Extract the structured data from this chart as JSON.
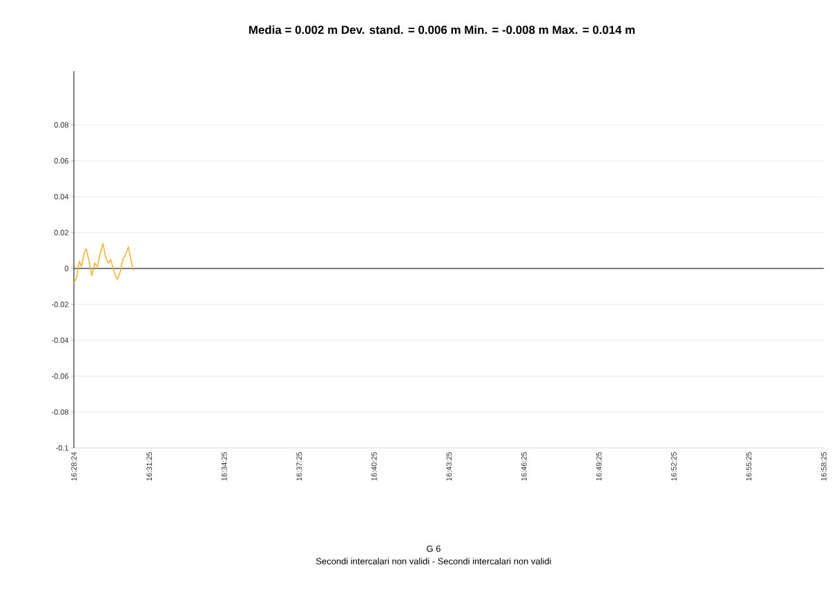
{
  "chart_data": {
    "type": "line",
    "title": "Media = 0.002 m  Dev. stand. = 0.006 m  Min. = -0.008 m  Max. = 0.014 m",
    "annotations": [
      "G 6",
      "Secondi intercalari non validi - Secondi intercalari non validi"
    ],
    "x": [
      16.47333,
      16.4752,
      16.477,
      16.4784,
      16.4803,
      16.4816,
      16.4835,
      16.4853,
      16.4872,
      16.489,
      16.4908,
      16.4927,
      16.4945,
      16.4964,
      16.4978,
      16.4996,
      16.501,
      16.5024,
      16.5042,
      16.506,
      16.5079,
      16.5097,
      16.5111,
      16.5129
    ],
    "series": [
      {
        "color": "#f2b431",
        "values": [
          -0.008,
          -0.005,
          0.004,
          0.001,
          0.009,
          0.011,
          0.004,
          -0.004,
          0.003,
          0.001,
          0.008,
          0.014,
          0.006,
          0.003,
          0.005,
          0.0,
          -0.004,
          -0.006,
          -0.002,
          0.005,
          0.008,
          0.012,
          0.006,
          -0.001
        ]
      }
    ],
    "xlim": [
      16.47333,
      16.97361
    ],
    "xticks": [
      {
        "value": 16.47333,
        "label": "16:28:24"
      },
      {
        "value": 16.52361,
        "label": "16:31:25"
      },
      {
        "value": 16.57361,
        "label": "16:34:25"
      },
      {
        "value": 16.62361,
        "label": "16:37:25"
      },
      {
        "value": 16.67361,
        "label": "16:40:25"
      },
      {
        "value": 16.72361,
        "label": "16:43:25"
      },
      {
        "value": 16.77361,
        "label": "16:46:25"
      },
      {
        "value": 16.82361,
        "label": "16:49:25"
      },
      {
        "value": 16.87361,
        "label": "16:52:25"
      },
      {
        "value": 16.92361,
        "label": "16:55:25"
      },
      {
        "value": 16.97361,
        "label": "16:58:25"
      }
    ],
    "ylim": [
      -0.1,
      0.11
    ],
    "yticks": [
      -0.1,
      -0.08,
      -0.06,
      -0.04,
      -0.02,
      0,
      0.02,
      0.04,
      0.06,
      0.08
    ],
    "grid": "y",
    "ref_lines": [
      {
        "axis": "y",
        "value": 0,
        "color": "#000000"
      }
    ]
  }
}
